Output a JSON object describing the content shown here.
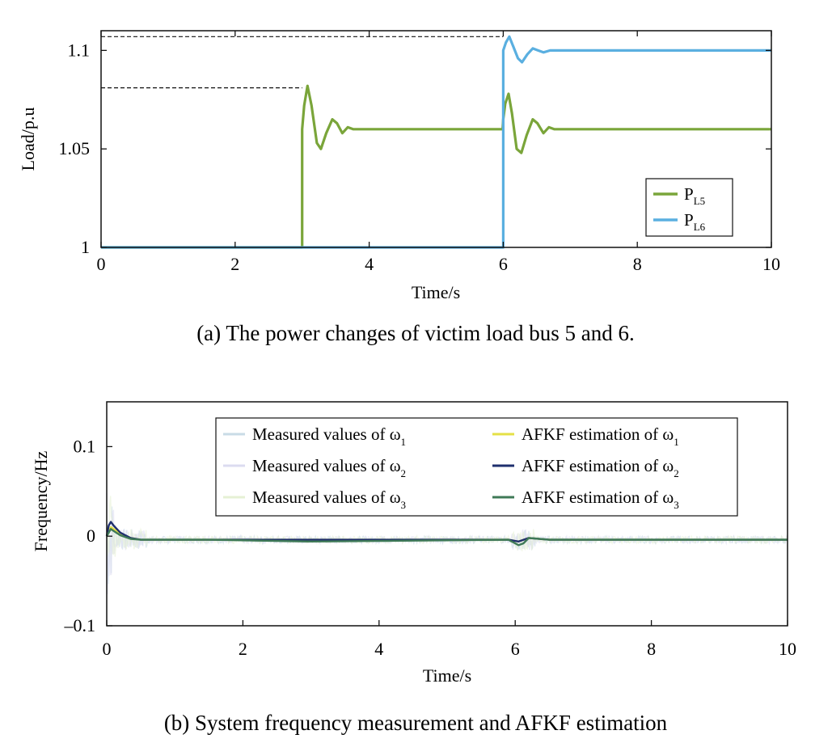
{
  "chart_data": [
    {
      "type": "line",
      "title": "",
      "caption": "(a) The power changes of victim load bus 5 and 6.",
      "xlabel": "Time/s",
      "ylabel": "Load/p.u",
      "xlim": [
        0,
        10
      ],
      "ylim": [
        1,
        1.11
      ],
      "xticks": [
        "0",
        "2",
        "4",
        "6",
        "8",
        "10"
      ],
      "yticks": [
        "1",
        "1.05",
        "1.1"
      ],
      "legend_position": "bottom-right",
      "reference_lines": [
        {
          "y": 1.081,
          "x_from": 0,
          "x_to": 3,
          "style": "dashed"
        },
        {
          "y": 1.107,
          "x_from": 0,
          "x_to": 6,
          "style": "dashed"
        }
      ],
      "series": [
        {
          "name": "P",
          "name_sub": "L5",
          "color": "#7aa53a",
          "x": [
            0,
            2.99,
            3.0,
            3.0,
            3.03,
            3.08,
            3.14,
            3.22,
            3.28,
            3.36,
            3.45,
            3.52,
            3.6,
            3.68,
            3.76,
            3.85,
            4.0,
            4.5,
            5.99,
            6.0,
            6.03,
            6.08,
            6.13,
            6.2,
            6.27,
            6.35,
            6.44,
            6.51,
            6.6,
            6.68,
            6.76,
            6.85,
            7.0,
            10
          ],
          "y": [
            1,
            1,
            1,
            1.06,
            1.072,
            1.082,
            1.072,
            1.053,
            1.05,
            1.058,
            1.065,
            1.063,
            1.058,
            1.061,
            1.06,
            1.06,
            1.06,
            1.06,
            1.06,
            1.065,
            1.073,
            1.078,
            1.068,
            1.05,
            1.048,
            1.057,
            1.065,
            1.063,
            1.058,
            1.061,
            1.06,
            1.06,
            1.06,
            1.06
          ]
        },
        {
          "name": "P",
          "name_sub": "L6",
          "color": "#5aafe0",
          "x": [
            0,
            5.99,
            6.0,
            6.0,
            6.04,
            6.09,
            6.15,
            6.22,
            6.28,
            6.36,
            6.44,
            6.52,
            6.6,
            6.7,
            6.8,
            7.0,
            10
          ],
          "y": [
            1,
            1,
            1,
            1.1,
            1.104,
            1.107,
            1.102,
            1.096,
            1.094,
            1.098,
            1.101,
            1.1,
            1.099,
            1.1,
            1.1,
            1.1,
            1.1
          ]
        }
      ]
    },
    {
      "type": "line",
      "title": "",
      "caption": "(b) System frequency measurement and AFKF estimation",
      "xlabel": "Time/s",
      "ylabel": "Frequency/Hz",
      "xlim": [
        0,
        10
      ],
      "ylim": [
        -0.1,
        0.15
      ],
      "xticks": [
        "0",
        "2",
        "4",
        "6",
        "8",
        "10"
      ],
      "yticks": [
        "0.1",
        "0",
        "–0.1"
      ],
      "legend_position": "top-right",
      "series": [
        {
          "name": "Measured values of ω",
          "name_sub": "1",
          "color": "#c9dbe6",
          "style": "noisy"
        },
        {
          "name": "Measured values of ω",
          "name_sub": "2",
          "color": "#dcdcf0",
          "style": "noisy"
        },
        {
          "name": "Measured values of ω",
          "name_sub": "3",
          "color": "#e6f0d4",
          "style": "noisy"
        },
        {
          "name": "AFKF estimation of ω",
          "name_sub": "1",
          "color": "#e4e046",
          "x": [
            0,
            0.03,
            0.06,
            0.1,
            0.2,
            0.35,
            0.5,
            0.8,
            1.5,
            3.0,
            5.9,
            6.05,
            6.2,
            6.5,
            10
          ],
          "y": [
            0,
            0.006,
            0.01,
            0.008,
            0.003,
            -0.002,
            -0.004,
            -0.004,
            -0.004,
            -0.004,
            -0.004,
            -0.006,
            -0.002,
            -0.004,
            -0.004
          ]
        },
        {
          "name": "AFKF estimation of ω",
          "name_sub": "2",
          "color": "#1f2f6e",
          "x": [
            0,
            0.03,
            0.06,
            0.1,
            0.2,
            0.35,
            0.5,
            0.8,
            1.5,
            3.0,
            5.9,
            6.05,
            6.2,
            6.5,
            10
          ],
          "y": [
            0,
            0.012,
            0.016,
            0.012,
            0.004,
            -0.002,
            -0.004,
            -0.004,
            -0.004,
            -0.004,
            -0.004,
            -0.006,
            -0.002,
            -0.004,
            -0.004
          ]
        },
        {
          "name": "AFKF estimation of ω",
          "name_sub": "3",
          "color": "#3f7a57",
          "x": [
            0,
            0.03,
            0.06,
            0.1,
            0.2,
            0.35,
            0.5,
            0.8,
            1.5,
            3.0,
            5.9,
            6.05,
            6.12,
            6.2,
            6.5,
            10
          ],
          "y": [
            0,
            0.004,
            0.008,
            0.006,
            0.001,
            -0.003,
            -0.004,
            -0.004,
            -0.004,
            -0.006,
            -0.004,
            -0.01,
            -0.008,
            -0.002,
            -0.004,
            -0.004
          ]
        }
      ]
    }
  ]
}
